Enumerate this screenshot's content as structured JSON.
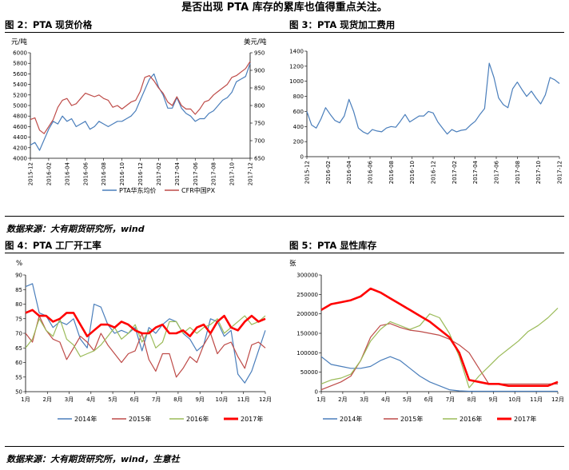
{
  "header": {
    "text": "是否出现 PTA 库存的累库也值得重点关注。"
  },
  "fig2": {
    "title": "图 2：PTA 现货价格"
  },
  "fig3": {
    "title": "图 3：PTA 现货加工费用"
  },
  "fig4": {
    "title": "图 4：PTA 工厂开工率"
  },
  "fig5": {
    "title": "图 5：PTA 显性库存"
  },
  "source1": {
    "text": "数据来源：大有期货研究所，wind"
  },
  "source2": {
    "text": "数据来源：大有期货研究所，wind，生意社"
  },
  "colors": {
    "blue": "#4a7ebb",
    "red": "#be4b48",
    "green": "#9bbb59",
    "brightRed": "#ff0000"
  },
  "chart_data": [
    {
      "id": "fig2",
      "type": "line",
      "ylabel": "元/吨",
      "ylabel_right": "美元/吨",
      "ylim": [
        4000,
        6000
      ],
      "yticks": [
        4000,
        4200,
        4400,
        4600,
        4800,
        5000,
        5200,
        5400,
        5600,
        5800,
        6000
      ],
      "ylim_right": [
        650,
        950
      ],
      "yticks_right": [
        650,
        700,
        750,
        800,
        850,
        900,
        950
      ],
      "xticks": [
        "2015-12",
        "2016-02",
        "2016-04",
        "2016-06",
        "2016-08",
        "2016-10",
        "2016-12",
        "2017-02",
        "2017-04",
        "2017-06",
        "2017-08",
        "2017-10",
        "2017-12"
      ],
      "series": [
        {
          "name": "PTA华东均价",
          "color": "#4a7ebb",
          "axis": "left",
          "values": [
            4250,
            4300,
            4150,
            4350,
            4550,
            4700,
            4650,
            4800,
            4700,
            4750,
            4600,
            4650,
            4700,
            4550,
            4600,
            4700,
            4650,
            4600,
            4650,
            4700,
            4700,
            4750,
            4800,
            4900,
            5100,
            5300,
            5500,
            5600,
            5350,
            5200,
            4950,
            4950,
            5150,
            4950,
            4850,
            4800,
            4700,
            4750,
            4750,
            4850,
            4900,
            5000,
            5100,
            5150,
            5250,
            5450,
            5500,
            5550,
            5800
          ]
        },
        {
          "name": "CFR中国PX",
          "color": "#be4b48",
          "axis": "right",
          "values": [
            760,
            765,
            730,
            720,
            740,
            760,
            795,
            815,
            820,
            800,
            805,
            820,
            835,
            830,
            825,
            830,
            820,
            815,
            795,
            800,
            790,
            800,
            810,
            815,
            840,
            880,
            885,
            870,
            850,
            835,
            810,
            800,
            825,
            800,
            790,
            790,
            775,
            790,
            810,
            815,
            830,
            840,
            850,
            860,
            880,
            885,
            895,
            905,
            925
          ]
        }
      ]
    },
    {
      "id": "fig3",
      "type": "line",
      "ylim": [
        0,
        1400
      ],
      "yticks": [
        0,
        200,
        400,
        600,
        800,
        1000,
        1200,
        1400
      ],
      "xticks": [
        "2015-12",
        "2016-02",
        "2016-04",
        "2016-06",
        "2016-08",
        "2016-10",
        "2016-12",
        "2017-02",
        "2017-04",
        "2017-06",
        "2017-08",
        "2017-10",
        "2017-12"
      ],
      "series": [
        {
          "name": "PTA现货加工费用",
          "color": "#4a7ebb",
          "values": [
            600,
            420,
            380,
            500,
            650,
            560,
            480,
            450,
            540,
            760,
            600,
            380,
            330,
            300,
            360,
            340,
            330,
            380,
            400,
            390,
            470,
            560,
            460,
            500,
            540,
            540,
            600,
            580,
            460,
            380,
            300,
            360,
            330,
            350,
            360,
            420,
            470,
            560,
            640,
            1240,
            1050,
            780,
            690,
            650,
            900,
            990,
            890,
            800,
            870,
            780,
            700,
            820,
            1050,
            1020,
            970
          ]
        }
      ]
    },
    {
      "id": "fig4",
      "type": "line",
      "ylabel": "%",
      "ylim": [
        50,
        90
      ],
      "yticks": [
        50,
        55,
        60,
        65,
        70,
        75,
        80,
        85,
        90
      ],
      "xticks": [
        "1月",
        "2月",
        "3月",
        "4月",
        "5月",
        "6月",
        "7月",
        "8月",
        "9月",
        "10月",
        "11月",
        "12月"
      ],
      "series": [
        {
          "name": "2014年",
          "color": "#4a7ebb",
          "values": [
            86,
            87,
            77,
            76,
            72,
            74,
            73,
            75,
            68,
            65,
            80,
            79,
            73,
            70,
            71,
            70,
            72,
            64,
            72,
            70,
            73,
            75,
            74,
            70,
            68,
            64,
            66,
            75,
            74,
            69,
            71,
            56,
            53,
            57,
            64,
            71
          ]
        },
        {
          "name": "2015年",
          "color": "#be4b48",
          "values": [
            70,
            67,
            76,
            71,
            68,
            67,
            61,
            65,
            69,
            67,
            64,
            70,
            66,
            63,
            60,
            63,
            64,
            70,
            61,
            57,
            63,
            63,
            55,
            58,
            62,
            60,
            66,
            70,
            63,
            66,
            67,
            62,
            58,
            66,
            67,
            65
          ]
        },
        {
          "name": "2016年",
          "color": "#9bbb59",
          "values": [
            65,
            68,
            75,
            71,
            69,
            75,
            68,
            66,
            62,
            63,
            64,
            66,
            69,
            72,
            68,
            70,
            73,
            67,
            71,
            65,
            67,
            74,
            74,
            70,
            72,
            70,
            72,
            73,
            75,
            70,
            72,
            74,
            76,
            73,
            74,
            76
          ]
        },
        {
          "name": "2017年",
          "color": "#ff0000",
          "values": [
            77,
            78,
            76,
            76,
            74,
            75,
            77,
            77,
            73,
            69,
            71,
            73,
            73,
            72,
            74,
            73,
            71,
            70,
            70,
            72,
            73,
            70,
            70,
            71,
            69,
            72,
            73,
            70,
            74,
            76,
            72,
            71,
            74,
            76,
            74,
            75
          ]
        }
      ]
    },
    {
      "id": "fig5",
      "type": "line",
      "ylabel": "张",
      "ylim": [
        0,
        300000
      ],
      "yticks": [
        0,
        50000,
        100000,
        150000,
        200000,
        250000,
        300000
      ],
      "xticks": [
        "1月",
        "2月",
        "3月",
        "4月",
        "5月",
        "6月",
        "7月",
        "8月",
        "9月",
        "10月",
        "11月",
        "12月"
      ],
      "series": [
        {
          "name": "2014年",
          "color": "#4a7ebb",
          "values": [
            90000,
            70000,
            65000,
            60000,
            60000,
            65000,
            80000,
            90000,
            80000,
            60000,
            40000,
            25000,
            15000,
            5000,
            2000,
            1000,
            1000,
            1000,
            1000,
            1000,
            1000,
            1000,
            1000,
            1000,
            1000
          ]
        },
        {
          "name": "2015年",
          "color": "#be4b48",
          "values": [
            5000,
            15000,
            25000,
            40000,
            80000,
            140000,
            170000,
            175000,
            165000,
            158000,
            155000,
            150000,
            145000,
            135000,
            120000,
            100000,
            60000,
            20000,
            20000,
            20000,
            20000,
            20000,
            20000,
            20000,
            20000
          ]
        },
        {
          "name": "2016年",
          "color": "#9bbb59",
          "values": [
            20000,
            30000,
            35000,
            45000,
            80000,
            130000,
            160000,
            180000,
            170000,
            160000,
            170000,
            200000,
            190000,
            150000,
            90000,
            10000,
            40000,
            65000,
            90000,
            110000,
            130000,
            155000,
            170000,
            190000,
            215000
          ]
        },
        {
          "name": "2017年",
          "color": "#ff0000",
          "values": [
            210000,
            225000,
            230000,
            235000,
            245000,
            265000,
            255000,
            240000,
            225000,
            210000,
            195000,
            180000,
            160000,
            140000,
            100000,
            30000,
            25000,
            20000,
            20000,
            15000,
            15000,
            15000,
            15000,
            15000,
            25000
          ]
        }
      ]
    }
  ]
}
